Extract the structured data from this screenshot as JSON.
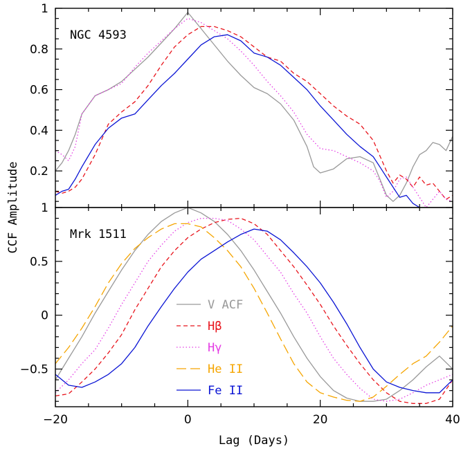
{
  "chart_data": [
    {
      "type": "line",
      "panel_title": "NGC 4593",
      "xlabel": "",
      "ylabel": "CCF Amplitude",
      "xlim": [
        -20,
        40
      ],
      "ylim": [
        0.02,
        1.0
      ],
      "yticks": [
        {
          "v": 0.2,
          "label": "0.2"
        },
        {
          "v": 0.4,
          "label": "0.4"
        },
        {
          "v": 0.6,
          "label": "0.6"
        },
        {
          "v": 0.8,
          "label": "0.8"
        },
        {
          "v": 1.0,
          "label": "1"
        }
      ],
      "series": [
        {
          "id": "vacf",
          "color": "#999999",
          "dash": "",
          "x": [
            -20,
            -19,
            -18,
            -17,
            -16,
            -14,
            -12,
            -10,
            -8,
            -6,
            -4,
            -2,
            0,
            1,
            2,
            3,
            4,
            6,
            8,
            10,
            12,
            14,
            16,
            18,
            19,
            20,
            22,
            24,
            26,
            28,
            29,
            30,
            31,
            32,
            33,
            34,
            35,
            36,
            37,
            38,
            39,
            40
          ],
          "y": [
            0.2,
            0.24,
            0.3,
            0.38,
            0.48,
            0.57,
            0.6,
            0.64,
            0.7,
            0.76,
            0.83,
            0.9,
            0.98,
            0.94,
            0.9,
            0.86,
            0.82,
            0.74,
            0.67,
            0.61,
            0.58,
            0.53,
            0.45,
            0.32,
            0.22,
            0.19,
            0.21,
            0.26,
            0.27,
            0.24,
            0.16,
            0.08,
            0.05,
            0.08,
            0.14,
            0.22,
            0.28,
            0.3,
            0.34,
            0.33,
            0.3,
            0.37
          ]
        },
        {
          "id": "hbeta",
          "color": "#e8141c",
          "dash": "6,4",
          "x": [
            -20,
            -19,
            -18,
            -17,
            -16,
            -14,
            -12,
            -10,
            -8,
            -6,
            -4,
            -2,
            0,
            2,
            4,
            6,
            8,
            10,
            12,
            14,
            16,
            18,
            20,
            22,
            24,
            26,
            28,
            30,
            31,
            32,
            33,
            34,
            35,
            36,
            37,
            38,
            39,
            40
          ],
          "y": [
            0.1,
            0.09,
            0.1,
            0.12,
            0.16,
            0.28,
            0.43,
            0.49,
            0.54,
            0.62,
            0.72,
            0.81,
            0.87,
            0.91,
            0.91,
            0.89,
            0.86,
            0.81,
            0.76,
            0.74,
            0.68,
            0.64,
            0.58,
            0.52,
            0.47,
            0.43,
            0.35,
            0.2,
            0.14,
            0.18,
            0.16,
            0.12,
            0.17,
            0.13,
            0.14,
            0.1,
            0.06,
            0.08
          ]
        },
        {
          "id": "hgamma",
          "color": "#e43ce4",
          "dash": "1.5,3",
          "x": [
            -20,
            -19,
            -18,
            -17,
            -16,
            -14,
            -12,
            -10,
            -8,
            -6,
            -4,
            -2,
            0,
            2,
            4,
            6,
            8,
            10,
            12,
            14,
            16,
            18,
            20,
            22,
            24,
            26,
            28,
            29,
            30,
            31,
            32,
            33,
            34,
            35,
            36,
            37,
            38,
            39,
            40
          ],
          "y": [
            0.3,
            0.28,
            0.25,
            0.32,
            0.48,
            0.57,
            0.6,
            0.63,
            0.71,
            0.78,
            0.84,
            0.9,
            0.95,
            0.93,
            0.89,
            0.85,
            0.79,
            0.72,
            0.64,
            0.57,
            0.49,
            0.38,
            0.31,
            0.3,
            0.27,
            0.24,
            0.2,
            0.15,
            0.07,
            0.1,
            0.16,
            0.17,
            0.12,
            0.07,
            0.02,
            0.06,
            0.1,
            0.06,
            0.05
          ]
        },
        {
          "id": "feii",
          "color": "#0a14d4",
          "dash": "",
          "x": [
            -20,
            -19,
            -18,
            -17,
            -16,
            -14,
            -12,
            -10,
            -8,
            -6,
            -4,
            -2,
            0,
            2,
            4,
            6,
            8,
            10,
            12,
            14,
            16,
            18,
            20,
            22,
            24,
            26,
            28,
            29,
            30,
            31,
            32,
            33,
            34,
            35
          ],
          "y": [
            0.08,
            0.1,
            0.11,
            0.16,
            0.22,
            0.33,
            0.41,
            0.46,
            0.48,
            0.55,
            0.62,
            0.68,
            0.75,
            0.82,
            0.86,
            0.87,
            0.84,
            0.78,
            0.76,
            0.72,
            0.66,
            0.6,
            0.52,
            0.45,
            0.38,
            0.32,
            0.27,
            0.22,
            0.17,
            0.12,
            0.07,
            0.08,
            0.04,
            0.02
          ]
        }
      ]
    },
    {
      "type": "line",
      "panel_title": "Mrk 1511",
      "xlabel": "Lag (Days)",
      "ylabel": "CCF Amplitude",
      "xlim": [
        -20,
        40
      ],
      "ylim": [
        -0.85,
        1.0
      ],
      "yticks": [
        {
          "v": -0.5,
          "label": "-0.5"
        },
        {
          "v": 0,
          "label": "0"
        },
        {
          "v": 0.5,
          "label": "0.5"
        },
        {
          "v": 1.0,
          "label": "1"
        }
      ],
      "xticks": [
        {
          "v": -20,
          "label": "-20"
        },
        {
          "v": 0,
          "label": "0"
        },
        {
          "v": 20,
          "label": "20"
        },
        {
          "v": 40,
          "label": "40"
        }
      ],
      "series": [
        {
          "id": "vacf",
          "color": "#999999",
          "dash": "",
          "x": [
            -20,
            -18,
            -16,
            -14,
            -12,
            -10,
            -8,
            -6,
            -4,
            -2,
            0,
            2,
            4,
            6,
            8,
            10,
            12,
            14,
            16,
            18,
            20,
            22,
            24,
            26,
            28,
            30,
            32,
            34,
            36,
            38,
            40
          ],
          "y": [
            -0.6,
            -0.4,
            -0.2,
            0.02,
            0.22,
            0.42,
            0.6,
            0.75,
            0.87,
            0.95,
            1.0,
            0.95,
            0.87,
            0.75,
            0.6,
            0.42,
            0.22,
            0.02,
            -0.2,
            -0.4,
            -0.57,
            -0.7,
            -0.77,
            -0.8,
            -0.8,
            -0.78,
            -0.7,
            -0.6,
            -0.48,
            -0.38,
            -0.5
          ]
        },
        {
          "id": "hbeta",
          "color": "#e8141c",
          "dash": "6,4",
          "x": [
            -20,
            -18,
            -16,
            -14,
            -12,
            -10,
            -8,
            -6,
            -4,
            -2,
            0,
            2,
            4,
            6,
            8,
            10,
            12,
            14,
            16,
            18,
            20,
            22,
            24,
            26,
            28,
            30,
            32,
            34,
            36,
            38,
            40
          ],
          "y": [
            -0.75,
            -0.73,
            -0.62,
            -0.5,
            -0.35,
            -0.18,
            0.05,
            0.25,
            0.45,
            0.6,
            0.72,
            0.8,
            0.86,
            0.89,
            0.9,
            0.85,
            0.75,
            0.6,
            0.45,
            0.28,
            0.1,
            -0.1,
            -0.28,
            -0.45,
            -0.6,
            -0.72,
            -0.8,
            -0.82,
            -0.82,
            -0.78,
            -0.6
          ]
        },
        {
          "id": "hgamma",
          "color": "#e43ce4",
          "dash": "1.5,3",
          "x": [
            -20,
            -18,
            -16,
            -14,
            -12,
            -10,
            -8,
            -6,
            -4,
            -2,
            0,
            2,
            4,
            6,
            8,
            10,
            12,
            14,
            16,
            18,
            20,
            22,
            24,
            26,
            28,
            30,
            32,
            34,
            36,
            38,
            40
          ],
          "y": [
            -0.72,
            -0.6,
            -0.45,
            -0.32,
            -0.12,
            0.1,
            0.3,
            0.5,
            0.65,
            0.78,
            0.86,
            0.9,
            0.9,
            0.88,
            0.8,
            0.7,
            0.55,
            0.4,
            0.2,
            0.02,
            -0.2,
            -0.4,
            -0.55,
            -0.68,
            -0.78,
            -0.8,
            -0.78,
            -0.72,
            -0.65,
            -0.6,
            -0.55
          ]
        },
        {
          "id": "heii",
          "color": "#f5a500",
          "dash": "14,6",
          "x": [
            -20,
            -18,
            -16,
            -14,
            -12,
            -10,
            -8,
            -6,
            -4,
            -2,
            0,
            2,
            4,
            6,
            8,
            10,
            12,
            14,
            16,
            18,
            20,
            22,
            24,
            26,
            28,
            30,
            32,
            34,
            36,
            38,
            40
          ],
          "y": [
            -0.45,
            -0.3,
            -0.12,
            0.08,
            0.3,
            0.48,
            0.62,
            0.72,
            0.8,
            0.85,
            0.85,
            0.82,
            0.72,
            0.6,
            0.45,
            0.25,
            0.02,
            -0.22,
            -0.45,
            -0.62,
            -0.72,
            -0.76,
            -0.79,
            -0.8,
            -0.76,
            -0.66,
            -0.55,
            -0.45,
            -0.38,
            -0.25,
            -0.1
          ]
        },
        {
          "id": "feii",
          "color": "#0a14d4",
          "dash": "",
          "x": [
            -20,
            -18,
            -16,
            -14,
            -12,
            -10,
            -8,
            -6,
            -4,
            -2,
            0,
            2,
            4,
            6,
            8,
            10,
            12,
            14,
            16,
            18,
            20,
            22,
            24,
            26,
            28,
            30,
            32,
            34,
            36,
            38,
            40
          ],
          "y": [
            -0.55,
            -0.65,
            -0.67,
            -0.62,
            -0.55,
            -0.45,
            -0.3,
            -0.1,
            0.08,
            0.25,
            0.4,
            0.52,
            0.6,
            0.68,
            0.75,
            0.8,
            0.78,
            0.7,
            0.58,
            0.45,
            0.3,
            0.12,
            -0.08,
            -0.3,
            -0.5,
            -0.62,
            -0.67,
            -0.7,
            -0.72,
            -0.72,
            -0.6
          ]
        }
      ],
      "legend": {
        "placement": "lower-middle",
        "entries": [
          {
            "id": "vacf",
            "label": "V ACF",
            "color": "#999999",
            "dash": ""
          },
          {
            "id": "hbeta",
            "label": "Hβ",
            "color": "#e8141c",
            "dash": "6,4"
          },
          {
            "id": "hgamma",
            "label": "Hγ",
            "color": "#e43ce4",
            "dash": "1.5,3"
          },
          {
            "id": "heii",
            "label": "He II",
            "color": "#f5a500",
            "dash": "14,6"
          },
          {
            "id": "feii",
            "label": "Fe II",
            "color": "#0a14d4",
            "dash": ""
          }
        ]
      }
    }
  ]
}
